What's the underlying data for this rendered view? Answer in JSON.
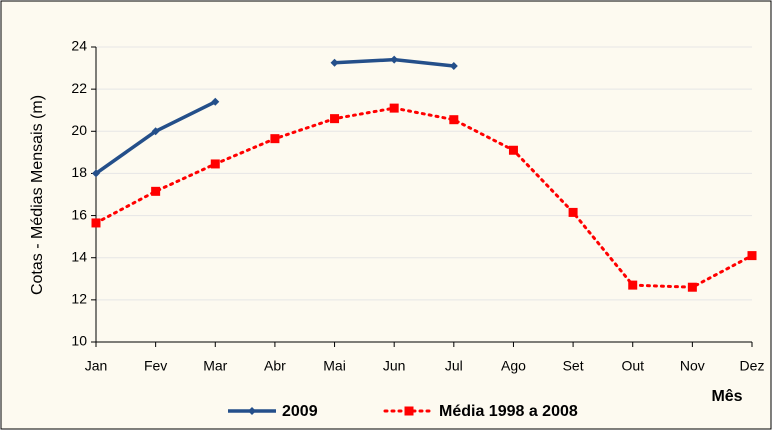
{
  "chart_data": {
    "type": "line",
    "x_label": "Mês",
    "y_label": "Cotas - Médias Mensais (m)",
    "categories": [
      "Jan",
      "Fev",
      "Mar",
      "Abr",
      "Mai",
      "Jun",
      "Jul",
      "Ago",
      "Set",
      "Out",
      "Nov",
      "Dez"
    ],
    "series": [
      {
        "name": "2009",
        "color": "#244f8a",
        "values": [
          18.0,
          20.0,
          21.4,
          null,
          23.25,
          23.4,
          23.1,
          null,
          null,
          null,
          null,
          null
        ]
      },
      {
        "name": "Média 1998 a 2008",
        "color": "#ff0000",
        "values": [
          15.65,
          17.15,
          18.45,
          19.65,
          20.6,
          21.1,
          20.55,
          19.1,
          16.15,
          12.7,
          12.6,
          14.1
        ]
      }
    ],
    "ylim": [
      10,
      24
    ],
    "yticks": [
      10,
      12,
      14,
      16,
      18,
      20,
      22,
      24
    ],
    "grid": true
  }
}
